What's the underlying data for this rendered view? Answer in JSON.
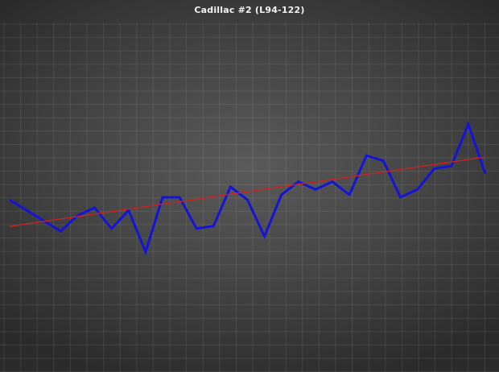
{
  "chart_data": {
    "type": "line",
    "title": "Cadillac  #2  (L94-122)",
    "xlabel": "",
    "ylabel": "",
    "x": [
      1,
      2,
      3,
      4,
      5,
      6,
      7,
      8,
      9,
      10,
      11,
      12,
      13,
      14,
      15,
      16,
      17,
      18,
      19,
      20,
      21,
      22,
      23,
      24,
      25,
      26,
      27,
      28,
      29
    ],
    "series": [
      {
        "name": "",
        "color": "#1414d8",
        "values": [
          73,
          69,
          65,
          61,
          67,
          70,
          62,
          69,
          53,
          74,
          74,
          62,
          63,
          78,
          73,
          59,
          75,
          80,
          77,
          80,
          75,
          90,
          88,
          74,
          77,
          85,
          86,
          102,
          83
        ]
      },
      {
        "name": "",
        "color": "#d42020",
        "trend": true,
        "values": [
          62.8,
          63.8,
          64.7,
          65.7,
          66.6,
          67.6,
          68.5,
          69.5,
          70.4,
          71.4,
          72.3,
          73.3,
          74.2,
          75.2,
          76.1,
          77.1,
          78.0,
          79.0,
          79.9,
          80.9,
          81.8,
          82.8,
          83.7,
          84.7,
          85.6,
          86.6,
          87.5,
          88.5,
          89.4
        ]
      }
    ],
    "ylim": [
      7,
      141
    ],
    "grid": true,
    "legend": "none"
  }
}
